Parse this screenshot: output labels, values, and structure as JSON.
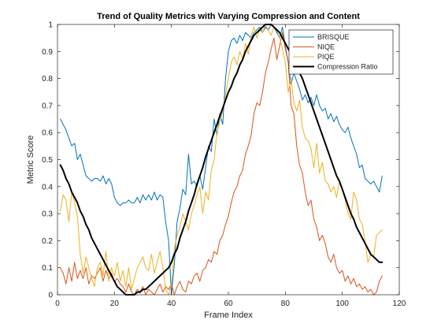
{
  "chart_data": {
    "type": "line",
    "title": "Trend of Quality Metrics with Varying Compression and Content",
    "xlabel": "Frame Index",
    "ylabel": "Metric Score",
    "xlim": [
      0,
      120
    ],
    "ylim": [
      0,
      1
    ],
    "xticks": [
      0,
      20,
      40,
      60,
      80,
      100,
      120
    ],
    "yticks": [
      0,
      0.1,
      0.2,
      0.3,
      0.4,
      0.5,
      0.6,
      0.7,
      0.8,
      0.9,
      1
    ],
    "grid": false,
    "legend_position": "top-right",
    "series": [
      {
        "name": "BRISQUE",
        "color": "#0072BD",
        "width": 1,
        "x": [
          1,
          2,
          3,
          4,
          5,
          6,
          7,
          8,
          9,
          10,
          11,
          12,
          13,
          14,
          15,
          16,
          17,
          18,
          19,
          20,
          21,
          22,
          23,
          24,
          25,
          26,
          27,
          28,
          29,
          30,
          31,
          32,
          33,
          34,
          35,
          36,
          37,
          38,
          39,
          40,
          41,
          42,
          43,
          44,
          45,
          46,
          47,
          48,
          49,
          50,
          51,
          52,
          53,
          54,
          55,
          56,
          57,
          58,
          59,
          60,
          61,
          62,
          63,
          64,
          65,
          66,
          67,
          68,
          69,
          70,
          71,
          72,
          73,
          74,
          75,
          76,
          77,
          78,
          79,
          80,
          81,
          82,
          83,
          84,
          85,
          86,
          87,
          88,
          89,
          90,
          91,
          92,
          93,
          94,
          95,
          96,
          97,
          98,
          99,
          100,
          101,
          102,
          103,
          104,
          105,
          106,
          107,
          108,
          109,
          110,
          111,
          112,
          113,
          114
        ],
        "y": [
          0.65,
          0.63,
          0.61,
          0.58,
          0.55,
          0.56,
          0.5,
          0.52,
          0.48,
          0.44,
          0.43,
          0.42,
          0.43,
          0.43,
          0.42,
          0.44,
          0.41,
          0.43,
          0.41,
          0.36,
          0.34,
          0.33,
          0.34,
          0.34,
          0.35,
          0.34,
          0.34,
          0.36,
          0.34,
          0.37,
          0.35,
          0.37,
          0.35,
          0.38,
          0.35,
          0.37,
          0.36,
          0.27,
          0.2,
          0.0,
          0.11,
          0.27,
          0.32,
          0.39,
          0.37,
          0.52,
          0.41,
          0.42,
          0.4,
          0.44,
          0.39,
          0.47,
          0.55,
          0.53,
          0.65,
          0.59,
          0.67,
          0.63,
          0.8,
          0.9,
          0.94,
          0.95,
          0.93,
          0.96,
          0.94,
          0.97,
          0.96,
          0.95,
          0.97,
          0.98,
          0.99,
          0.97,
          0.99,
          0.98,
          1.0,
          0.99,
          0.97,
          0.95,
          0.99,
          0.92,
          0.86,
          0.78,
          0.82,
          0.79,
          0.76,
          0.72,
          0.74,
          0.71,
          0.73,
          0.7,
          0.74,
          0.7,
          0.68,
          0.69,
          0.65,
          0.67,
          0.64,
          0.66,
          0.63,
          0.61,
          0.6,
          0.62,
          0.58,
          0.55,
          0.52,
          0.47,
          0.48,
          0.43,
          0.42,
          0.41,
          0.42,
          0.4,
          0.38,
          0.44
        ]
      },
      {
        "name": "NIQE",
        "color": "#D95319",
        "width": 1,
        "x": [
          1,
          2,
          3,
          4,
          5,
          6,
          7,
          8,
          9,
          10,
          11,
          12,
          13,
          14,
          15,
          16,
          17,
          18,
          19,
          20,
          21,
          22,
          23,
          24,
          25,
          26,
          27,
          28,
          29,
          30,
          31,
          32,
          33,
          34,
          35,
          36,
          37,
          38,
          39,
          40,
          41,
          42,
          43,
          44,
          45,
          46,
          47,
          48,
          49,
          50,
          51,
          52,
          53,
          54,
          55,
          56,
          57,
          58,
          59,
          60,
          61,
          62,
          63,
          64,
          65,
          66,
          67,
          68,
          69,
          70,
          71,
          72,
          73,
          74,
          75,
          76,
          77,
          78,
          79,
          80,
          81,
          82,
          83,
          84,
          85,
          86,
          87,
          88,
          89,
          90,
          91,
          92,
          93,
          94,
          95,
          96,
          97,
          98,
          99,
          100,
          101,
          102,
          103,
          104,
          105,
          106,
          107,
          108,
          109,
          110,
          111,
          112,
          113,
          114
        ],
        "y": [
          0.1,
          0.08,
          0.04,
          0.1,
          0.05,
          0.12,
          0.06,
          0.09,
          0.06,
          0.1,
          0.04,
          0.07,
          0.06,
          0.08,
          0.1,
          0.05,
          0.09,
          0.06,
          0.08,
          0.05,
          0.06,
          0.04,
          0.03,
          0.01,
          0.04,
          0.01,
          0.0,
          0.02,
          0.01,
          0.03,
          0.0,
          0.02,
          0.01,
          0.0,
          0.02,
          0.04,
          0.01,
          0.03,
          0.02,
          0.04,
          0.0,
          0.03,
          0.05,
          0.02,
          0.01,
          0.05,
          0.04,
          0.07,
          0.08,
          0.05,
          0.09,
          0.1,
          0.13,
          0.12,
          0.16,
          0.15,
          0.2,
          0.22,
          0.26,
          0.29,
          0.34,
          0.38,
          0.4,
          0.44,
          0.46,
          0.52,
          0.55,
          0.59,
          0.67,
          0.71,
          0.7,
          0.75,
          0.82,
          0.86,
          0.91,
          0.95,
          0.87,
          0.92,
          0.97,
          0.91,
          0.86,
          0.7,
          0.67,
          0.55,
          0.48,
          0.45,
          0.38,
          0.33,
          0.35,
          0.28,
          0.25,
          0.2,
          0.22,
          0.19,
          0.14,
          0.12,
          0.15,
          0.1,
          0.08,
          0.09,
          0.05,
          0.07,
          0.04,
          0.06,
          0.03,
          0.04,
          0.02,
          0.03,
          0.01,
          0.02,
          0.0,
          0.01,
          0.05,
          0.07
        ]
      },
      {
        "name": "PIQE",
        "color": "#EDB120",
        "width": 1,
        "x": [
          1,
          2,
          3,
          4,
          5,
          6,
          7,
          8,
          9,
          10,
          11,
          12,
          13,
          14,
          15,
          16,
          17,
          18,
          19,
          20,
          21,
          22,
          23,
          24,
          25,
          26,
          27,
          28,
          29,
          30,
          31,
          32,
          33,
          34,
          35,
          36,
          37,
          38,
          39,
          40,
          41,
          42,
          43,
          44,
          45,
          46,
          47,
          48,
          49,
          50,
          51,
          52,
          53,
          54,
          55,
          56,
          57,
          58,
          59,
          60,
          61,
          62,
          63,
          64,
          65,
          66,
          67,
          68,
          69,
          70,
          71,
          72,
          73,
          74,
          75,
          76,
          77,
          78,
          79,
          80,
          81,
          82,
          83,
          84,
          85,
          86,
          87,
          88,
          89,
          90,
          91,
          92,
          93,
          94,
          95,
          96,
          97,
          98,
          99,
          100,
          101,
          102,
          103,
          104,
          105,
          106,
          107,
          108,
          109,
          110,
          111,
          112,
          113,
          114
        ],
        "y": [
          0.31,
          0.37,
          0.35,
          0.27,
          0.38,
          0.34,
          0.29,
          0.15,
          0.08,
          0.14,
          0.1,
          0.06,
          0.03,
          0.1,
          0.12,
          0.07,
          0.16,
          0.05,
          0.1,
          0.07,
          0.12,
          0.05,
          0.09,
          0.03,
          0.1,
          0.02,
          0.06,
          0.1,
          0.12,
          0.14,
          0.1,
          0.09,
          0.15,
          0.08,
          0.12,
          0.16,
          0.1,
          0.02,
          0.0,
          0.04,
          0.17,
          0.22,
          0.25,
          0.3,
          0.27,
          0.24,
          0.3,
          0.33,
          0.37,
          0.4,
          0.3,
          0.38,
          0.35,
          0.46,
          0.5,
          0.6,
          0.64,
          0.68,
          0.74,
          0.8,
          0.86,
          0.88,
          0.85,
          0.9,
          0.87,
          0.93,
          0.89,
          0.96,
          0.99,
          0.95,
          0.98,
          0.97,
          1.0,
          0.98,
          0.96,
          0.99,
          0.98,
          0.95,
          0.91,
          0.86,
          0.75,
          0.8,
          0.71,
          0.68,
          0.72,
          0.62,
          0.58,
          0.57,
          0.54,
          0.47,
          0.56,
          0.45,
          0.49,
          0.42,
          0.41,
          0.38,
          0.4,
          0.36,
          0.42,
          0.39,
          0.35,
          0.3,
          0.28,
          0.38,
          0.35,
          0.28,
          0.26,
          0.2,
          0.12,
          0.15,
          0.14,
          0.22,
          0.23,
          0.24
        ]
      },
      {
        "name": "Compression Ratio",
        "color": "#000000",
        "width": 2,
        "x": [
          1,
          2,
          3,
          4,
          5,
          6,
          7,
          8,
          9,
          10,
          11,
          12,
          13,
          14,
          15,
          16,
          17,
          18,
          19,
          20,
          21,
          22,
          23,
          24,
          25,
          26,
          27,
          28,
          29,
          30,
          31,
          32,
          33,
          34,
          35,
          36,
          37,
          38,
          39,
          40,
          41,
          42,
          43,
          44,
          45,
          46,
          47,
          48,
          49,
          50,
          51,
          52,
          53,
          54,
          55,
          56,
          57,
          58,
          59,
          60,
          61,
          62,
          63,
          64,
          65,
          66,
          67,
          68,
          69,
          70,
          71,
          72,
          73,
          74,
          75,
          76,
          77,
          78,
          79,
          80,
          81,
          82,
          83,
          84,
          85,
          86,
          87,
          88,
          89,
          90,
          91,
          92,
          93,
          94,
          95,
          96,
          97,
          98,
          99,
          100,
          101,
          102,
          103,
          104,
          105,
          106,
          107,
          108,
          109,
          110,
          111,
          112,
          113,
          114
        ],
        "y": [
          0.48,
          0.46,
          0.43,
          0.41,
          0.38,
          0.36,
          0.34,
          0.31,
          0.29,
          0.26,
          0.24,
          0.21,
          0.19,
          0.17,
          0.15,
          0.13,
          0.11,
          0.09,
          0.07,
          0.05,
          0.03,
          0.02,
          0.01,
          0.0,
          0.0,
          0.0,
          0.0,
          0.01,
          0.01,
          0.02,
          0.02,
          0.03,
          0.04,
          0.05,
          0.06,
          0.07,
          0.08,
          0.09,
          0.1,
          0.12,
          0.15,
          0.17,
          0.21,
          0.24,
          0.27,
          0.31,
          0.34,
          0.37,
          0.41,
          0.44,
          0.47,
          0.51,
          0.54,
          0.57,
          0.6,
          0.63,
          0.66,
          0.69,
          0.72,
          0.75,
          0.77,
          0.8,
          0.82,
          0.85,
          0.87,
          0.9,
          0.92,
          0.94,
          0.96,
          0.97,
          0.98,
          0.99,
          1.0,
          1.0,
          1.0,
          0.99,
          0.98,
          0.97,
          0.95,
          0.93,
          0.91,
          0.89,
          0.87,
          0.85,
          0.82,
          0.8,
          0.77,
          0.74,
          0.71,
          0.68,
          0.65,
          0.62,
          0.59,
          0.56,
          0.53,
          0.5,
          0.47,
          0.44,
          0.42,
          0.39,
          0.36,
          0.33,
          0.3,
          0.28,
          0.25,
          0.23,
          0.21,
          0.19,
          0.17,
          0.15,
          0.14,
          0.13,
          0.12,
          0.12
        ]
      }
    ]
  }
}
